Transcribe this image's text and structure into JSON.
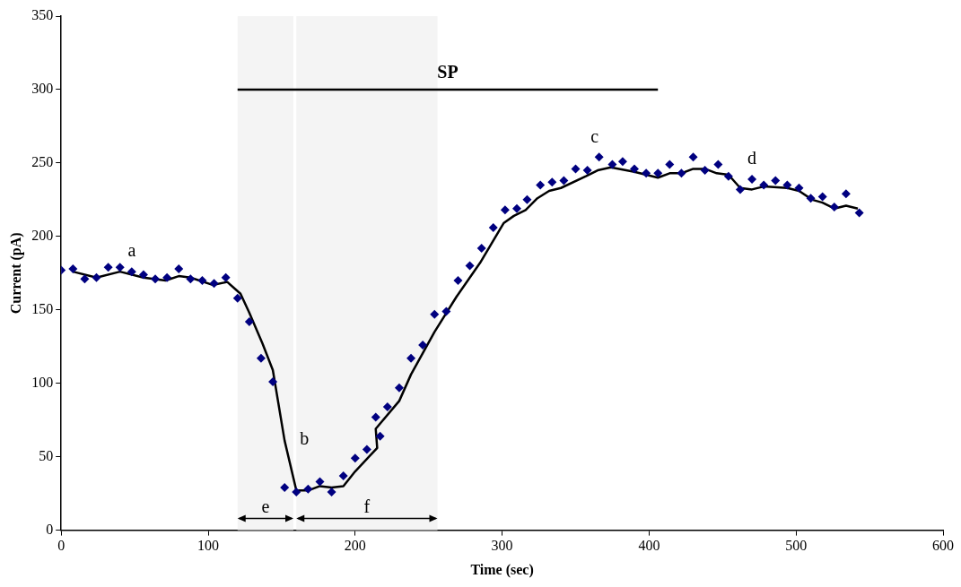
{
  "chart_data": {
    "type": "scatter",
    "xlabel": "Time (sec)",
    "ylabel": "Current (pA)",
    "xlim": [
      0,
      600
    ],
    "xticks": [
      0,
      100,
      200,
      300,
      400,
      500,
      600
    ],
    "ylim": [
      0,
      350
    ],
    "yticks": [
      0,
      50,
      100,
      150,
      200,
      250,
      300,
      350
    ],
    "grid": false,
    "legend": false,
    "series": [
      {
        "marker": "diamond",
        "color": "#000080",
        "x": [
          0,
          8,
          16,
          24,
          32,
          40,
          48,
          56,
          64,
          72,
          80,
          88,
          96,
          104,
          112,
          120,
          128,
          136,
          144,
          152,
          160,
          168,
          176,
          184,
          192,
          200,
          208,
          214,
          217,
          222,
          230,
          238,
          246,
          254,
          262,
          270,
          278,
          286,
          294,
          302,
          310,
          317,
          326,
          334,
          342,
          350,
          358,
          366,
          375,
          382,
          390,
          398,
          406,
          414,
          422,
          430,
          438,
          447,
          454,
          462,
          470,
          478,
          486,
          494,
          502,
          510,
          518,
          526,
          534,
          543
        ],
        "values": [
          177,
          178,
          171,
          172,
          179,
          179,
          176,
          174,
          171,
          172,
          178,
          171,
          170,
          168,
          172,
          158,
          142,
          117,
          101,
          29,
          26,
          28,
          33,
          26,
          37,
          49,
          55,
          77,
          64,
          84,
          97,
          117,
          126,
          147,
          149,
          170,
          180,
          192,
          206,
          218,
          219,
          225,
          235,
          237,
          238,
          246,
          245,
          254,
          249,
          251,
          246,
          243,
          243,
          249,
          243,
          254,
          245,
          249,
          241,
          232,
          239,
          235,
          238,
          235,
          233,
          226,
          227,
          220,
          229,
          216
        ]
      },
      {
        "type": "line",
        "marker": "none",
        "color": "#000000",
        "x": [
          8,
          24,
          40,
          56,
          71,
          80,
          88,
          103,
          113,
          122,
          128,
          137,
          144,
          152,
          160,
          168,
          176,
          184,
          192,
          200,
          215,
          214,
          230,
          238,
          254,
          269,
          285,
          301,
          308,
          316,
          324,
          332,
          340,
          357,
          365,
          374,
          390,
          406,
          414,
          422,
          430,
          438,
          446,
          454,
          462,
          470,
          478,
          494,
          502,
          511,
          518,
          526,
          534,
          542
        ],
        "values": [
          176,
          172,
          176,
          172,
          170,
          173,
          172,
          167,
          169,
          161,
          148,
          127,
          109,
          61,
          27,
          27,
          30,
          29,
          30,
          40,
          56,
          69,
          88,
          106,
          135,
          159,
          182,
          209,
          214,
          218,
          226,
          231,
          233,
          241,
          245,
          247,
          244,
          240,
          243,
          243,
          246,
          246,
          243,
          242,
          233,
          232,
          234,
          233,
          231,
          225,
          223,
          219,
          221,
          219
        ]
      },
      {
        "type": "line",
        "marker": "none",
        "color": "#000000",
        "x": [
          120,
          406
        ],
        "values": [
          300,
          300
        ]
      }
    ],
    "bands": [
      {
        "axis": "x",
        "from": 120,
        "to": 158,
        "label": "e",
        "color": "#f4f4f4"
      },
      {
        "axis": "x",
        "from": 160,
        "to": 256,
        "label": "f",
        "color": "#f4f4f4"
      }
    ],
    "annotations": [
      {
        "text": "SP",
        "x": 263,
        "y": 300
      },
      {
        "text": "a",
        "x": 48,
        "y": 176
      },
      {
        "text": "b",
        "x": 160,
        "y": 26
      },
      {
        "text": "c",
        "x": 366,
        "y": 254
      },
      {
        "text": "d",
        "x": 470,
        "y": 239
      }
    ]
  }
}
